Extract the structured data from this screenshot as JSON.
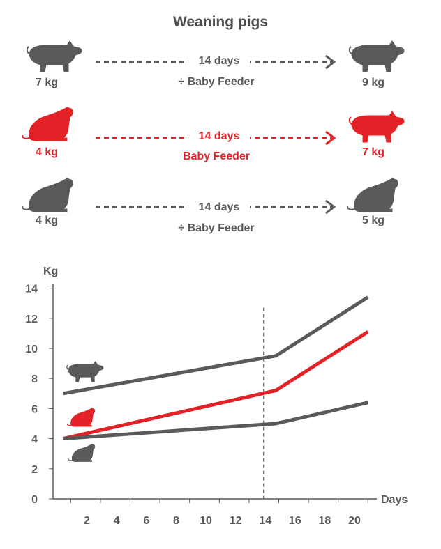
{
  "title": "Weaning pigs",
  "rows": [
    {
      "start_kg": "7 kg",
      "days": "14 days",
      "feeder": "÷ Baby Feeder",
      "end_kg": "9 kg",
      "color": "#5a5a5c",
      "start_icon": "pig-standing-icon",
      "end_icon": "pig-standing-icon"
    },
    {
      "start_kg": "4 kg",
      "days": "14 days",
      "feeder": "Baby Feeder",
      "end_kg": "7 kg",
      "color": "#e32228",
      "start_icon": "pig-sitting-icon",
      "end_icon": "pig-standing-icon"
    },
    {
      "start_kg": "4 kg",
      "days": "14 days",
      "feeder": "÷ Baby Feeder",
      "end_kg": "5 kg",
      "color": "#5a5a5c",
      "start_icon": "pig-sitting-icon",
      "end_icon": "pig-sitting-icon"
    }
  ],
  "chart_data": {
    "type": "line",
    "ylabel": "Kg",
    "xlabel": "Days",
    "ylim": [
      0,
      14
    ],
    "yticks": [
      "0",
      "2",
      "4",
      "6",
      "8",
      "10",
      "12",
      "14"
    ],
    "xticks": [
      "2",
      "4",
      "6",
      "8",
      "10",
      "12",
      "14",
      "16",
      "18",
      "20"
    ],
    "vline_x": 14,
    "series": [
      {
        "color": "#5a5a5c",
        "x": [
          0.5,
          14.8,
          21
        ],
        "y": [
          7,
          9.5,
          13.4
        ]
      },
      {
        "color": "#e32228",
        "x": [
          0.5,
          14.8,
          21
        ],
        "y": [
          4,
          7.2,
          11.1
        ]
      },
      {
        "color": "#5a5a5c",
        "x": [
          0.5,
          14.8,
          21
        ],
        "y": [
          4,
          5,
          6.4
        ]
      }
    ]
  }
}
